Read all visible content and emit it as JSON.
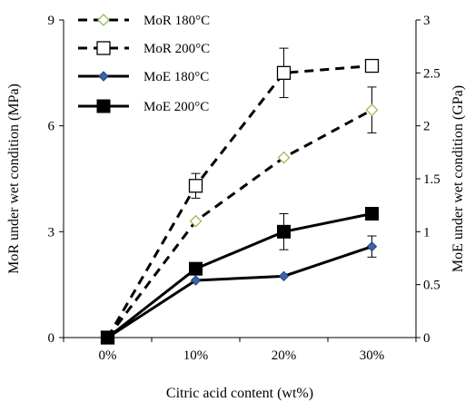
{
  "chart_data": {
    "type": "line",
    "xlabel": "Citric acid content (wt%)",
    "ylabel_left": "MoR under wet condition (MPa)",
    "ylabel_right": "MoE under wet condition (GPa)",
    "categories": [
      "0%",
      "10%",
      "20%",
      "30%"
    ],
    "y_left": {
      "lim": [
        0,
        9
      ],
      "ticks": [
        0,
        3,
        6,
        9
      ]
    },
    "y_right": {
      "lim": [
        0,
        3
      ],
      "ticks": [
        "0",
        "0.5",
        "1",
        "1.5",
        "2",
        "2.5",
        "3"
      ]
    },
    "grid": false,
    "legend_position": "top-left",
    "series": [
      {
        "name": "MoR 180°C",
        "axis": "left",
        "values": [
          0,
          3.3,
          5.1,
          6.45
        ],
        "error": [
          0,
          0,
          0,
          0.65
        ],
        "line": "dashed",
        "marker": "open-diamond",
        "color": "#9bbb59"
      },
      {
        "name": "MoR 200°C",
        "axis": "left",
        "values": [
          0,
          4.3,
          7.5,
          7.7
        ],
        "error": [
          0,
          0.35,
          0.7,
          0
        ],
        "line": "dashed",
        "marker": "open-square",
        "color": "#000000"
      },
      {
        "name": "MoE 180°C",
        "axis": "right",
        "values": [
          0,
          0.54,
          0.58,
          0.86
        ],
        "error": [
          0,
          0,
          0,
          0.1
        ],
        "line": "solid",
        "marker": "filled-diamond",
        "color": "#1f3f7a"
      },
      {
        "name": "MoE 200°C",
        "axis": "right",
        "values": [
          0,
          0.65,
          1.0,
          1.17
        ],
        "error": [
          0,
          0,
          0.17,
          0
        ],
        "line": "solid",
        "marker": "filled-square",
        "color": "#000000"
      }
    ]
  }
}
